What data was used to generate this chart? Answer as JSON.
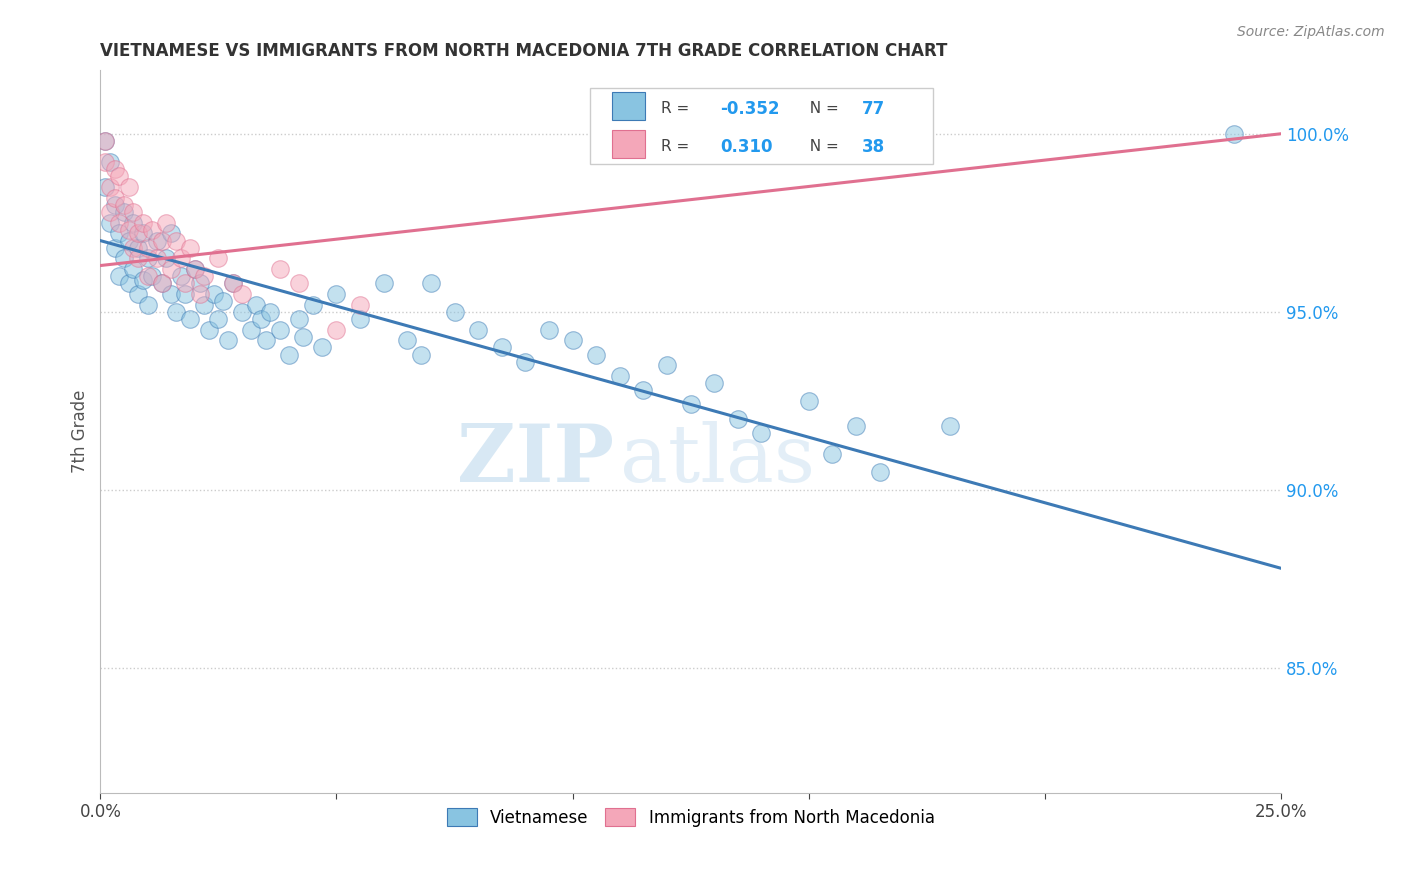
{
  "title": "VIETNAMESE VS IMMIGRANTS FROM NORTH MACEDONIA 7TH GRADE CORRELATION CHART",
  "source": "Source: ZipAtlas.com",
  "ylabel": "7th Grade",
  "ytick_labels": [
    "85.0%",
    "90.0%",
    "95.0%",
    "100.0%"
  ],
  "ytick_values": [
    0.85,
    0.9,
    0.95,
    1.0
  ],
  "xlim": [
    0.0,
    0.25
  ],
  "ylim": [
    0.815,
    1.018
  ],
  "legend_blue_r": "-0.352",
  "legend_blue_n": "77",
  "legend_pink_r": "0.310",
  "legend_pink_n": "38",
  "blue_color": "#89c4e1",
  "pink_color": "#f4a7b9",
  "line_blue": "#3d7ab5",
  "line_pink": "#e07090",
  "watermark_zip": "ZIP",
  "watermark_atlas": "atlas",
  "blue_scatter": [
    [
      0.001,
      0.998
    ],
    [
      0.001,
      0.985
    ],
    [
      0.002,
      0.975
    ],
    [
      0.002,
      0.992
    ],
    [
      0.003,
      0.968
    ],
    [
      0.003,
      0.98
    ],
    [
      0.004,
      0.972
    ],
    [
      0.004,
      0.96
    ],
    [
      0.005,
      0.978
    ],
    [
      0.005,
      0.965
    ],
    [
      0.006,
      0.97
    ],
    [
      0.006,
      0.958
    ],
    [
      0.007,
      0.975
    ],
    [
      0.007,
      0.962
    ],
    [
      0.008,
      0.968
    ],
    [
      0.008,
      0.955
    ],
    [
      0.009,
      0.972
    ],
    [
      0.009,
      0.959
    ],
    [
      0.01,
      0.965
    ],
    [
      0.01,
      0.952
    ],
    [
      0.011,
      0.96
    ],
    [
      0.012,
      0.97
    ],
    [
      0.013,
      0.958
    ],
    [
      0.014,
      0.965
    ],
    [
      0.015,
      0.955
    ],
    [
      0.015,
      0.972
    ],
    [
      0.016,
      0.95
    ],
    [
      0.017,
      0.96
    ],
    [
      0.018,
      0.955
    ],
    [
      0.019,
      0.948
    ],
    [
      0.02,
      0.962
    ],
    [
      0.021,
      0.958
    ],
    [
      0.022,
      0.952
    ],
    [
      0.023,
      0.945
    ],
    [
      0.024,
      0.955
    ],
    [
      0.025,
      0.948
    ],
    [
      0.026,
      0.953
    ],
    [
      0.027,
      0.942
    ],
    [
      0.028,
      0.958
    ],
    [
      0.03,
      0.95
    ],
    [
      0.032,
      0.945
    ],
    [
      0.033,
      0.952
    ],
    [
      0.034,
      0.948
    ],
    [
      0.035,
      0.942
    ],
    [
      0.036,
      0.95
    ],
    [
      0.038,
      0.945
    ],
    [
      0.04,
      0.938
    ],
    [
      0.042,
      0.948
    ],
    [
      0.043,
      0.943
    ],
    [
      0.045,
      0.952
    ],
    [
      0.047,
      0.94
    ],
    [
      0.05,
      0.955
    ],
    [
      0.055,
      0.948
    ],
    [
      0.06,
      0.958
    ],
    [
      0.065,
      0.942
    ],
    [
      0.068,
      0.938
    ],
    [
      0.07,
      0.958
    ],
    [
      0.075,
      0.95
    ],
    [
      0.08,
      0.945
    ],
    [
      0.085,
      0.94
    ],
    [
      0.09,
      0.936
    ],
    [
      0.095,
      0.945
    ],
    [
      0.1,
      0.942
    ],
    [
      0.105,
      0.938
    ],
    [
      0.11,
      0.932
    ],
    [
      0.115,
      0.928
    ],
    [
      0.12,
      0.935
    ],
    [
      0.125,
      0.924
    ],
    [
      0.13,
      0.93
    ],
    [
      0.135,
      0.92
    ],
    [
      0.14,
      0.916
    ],
    [
      0.15,
      0.925
    ],
    [
      0.155,
      0.91
    ],
    [
      0.16,
      0.918
    ],
    [
      0.165,
      0.905
    ],
    [
      0.18,
      0.918
    ],
    [
      0.24,
      1.0
    ]
  ],
  "pink_scatter": [
    [
      0.001,
      0.998
    ],
    [
      0.001,
      0.992
    ],
    [
      0.002,
      0.985
    ],
    [
      0.002,
      0.978
    ],
    [
      0.003,
      0.99
    ],
    [
      0.003,
      0.982
    ],
    [
      0.004,
      0.975
    ],
    [
      0.004,
      0.988
    ],
    [
      0.005,
      0.98
    ],
    [
      0.006,
      0.973
    ],
    [
      0.006,
      0.985
    ],
    [
      0.007,
      0.968
    ],
    [
      0.007,
      0.978
    ],
    [
      0.008,
      0.972
    ],
    [
      0.008,
      0.965
    ],
    [
      0.009,
      0.975
    ],
    [
      0.01,
      0.968
    ],
    [
      0.01,
      0.96
    ],
    [
      0.011,
      0.973
    ],
    [
      0.012,
      0.965
    ],
    [
      0.013,
      0.97
    ],
    [
      0.013,
      0.958
    ],
    [
      0.014,
      0.975
    ],
    [
      0.015,
      0.962
    ],
    [
      0.016,
      0.97
    ],
    [
      0.017,
      0.965
    ],
    [
      0.018,
      0.958
    ],
    [
      0.019,
      0.968
    ],
    [
      0.02,
      0.962
    ],
    [
      0.021,
      0.955
    ],
    [
      0.022,
      0.96
    ],
    [
      0.025,
      0.965
    ],
    [
      0.028,
      0.958
    ],
    [
      0.03,
      0.955
    ],
    [
      0.038,
      0.962
    ],
    [
      0.042,
      0.958
    ],
    [
      0.05,
      0.945
    ],
    [
      0.055,
      0.952
    ]
  ],
  "blue_line_x": [
    0.0,
    0.25
  ],
  "blue_line_y": [
    0.97,
    0.878
  ],
  "pink_line_x": [
    0.0,
    0.25
  ],
  "pink_line_y": [
    0.963,
    1.0
  ]
}
